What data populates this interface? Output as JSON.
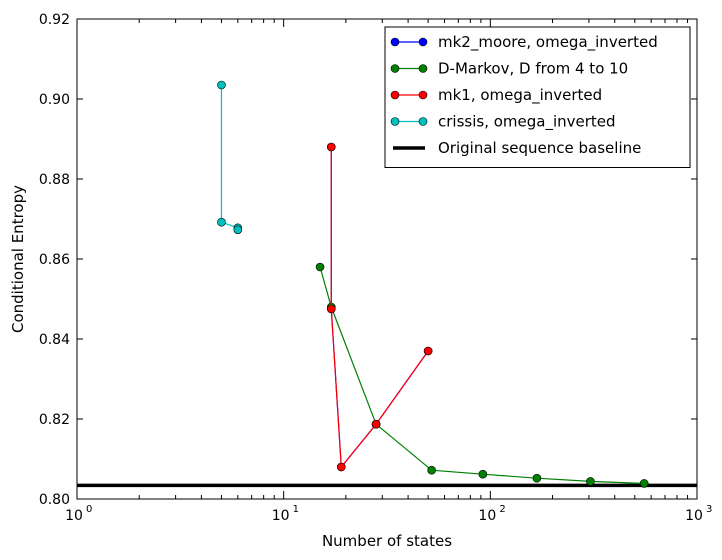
{
  "chart_data": {
    "type": "line",
    "title": "",
    "xlabel": "Number of states",
    "ylabel": "Conditional Entropy",
    "xscale": "log",
    "xlim": [
      1,
      1000
    ],
    "ylim": [
      0.8,
      0.92
    ],
    "x_ticks": [
      1,
      10,
      100,
      1000
    ],
    "x_tick_labels": [
      {
        "base": "10",
        "exp": "0"
      },
      {
        "base": "10",
        "exp": "1"
      },
      {
        "base": "10",
        "exp": "2"
      },
      {
        "base": "10",
        "exp": "3"
      }
    ],
    "y_ticks": [
      0.8,
      0.82,
      0.84,
      0.86,
      0.88,
      0.9,
      0.92
    ],
    "y_tick_labels": [
      "0.80",
      "0.82",
      "0.84",
      "0.86",
      "0.88",
      "0.90",
      "0.92"
    ],
    "grid": false,
    "legend_position": "top-right",
    "series": [
      {
        "name": "mk2_moore, omega_inverted",
        "color": "#0000ff",
        "marker": "circle",
        "x": [
          17,
          17,
          19,
          28,
          50
        ],
        "y": [
          0.888,
          0.8475,
          0.808,
          0.8187,
          0.837
        ]
      },
      {
        "name": "D-Markov, D from 4 to 10",
        "color": "#008000",
        "marker": "circle",
        "x": [
          15,
          17,
          28,
          52,
          92,
          168,
          305,
          555
        ],
        "y": [
          0.858,
          0.848,
          0.8187,
          0.8072,
          0.8062,
          0.8052,
          0.8044,
          0.8039
        ]
      },
      {
        "name": "mk1, omega_inverted",
        "color": "#ff0000",
        "marker": "circle",
        "x": [
          17,
          17,
          19,
          28,
          50
        ],
        "y": [
          0.888,
          0.8475,
          0.808,
          0.8187,
          0.837
        ]
      },
      {
        "name": "crissis, omega_inverted",
        "color": "#00bfbf",
        "marker": "circle",
        "x": [
          5,
          5,
          6,
          6
        ],
        "y": [
          0.9035,
          0.8692,
          0.8678,
          0.8673
        ]
      }
    ],
    "baseline": {
      "name": "Original sequence baseline",
      "color": "#000000",
      "y": 0.8034
    }
  }
}
